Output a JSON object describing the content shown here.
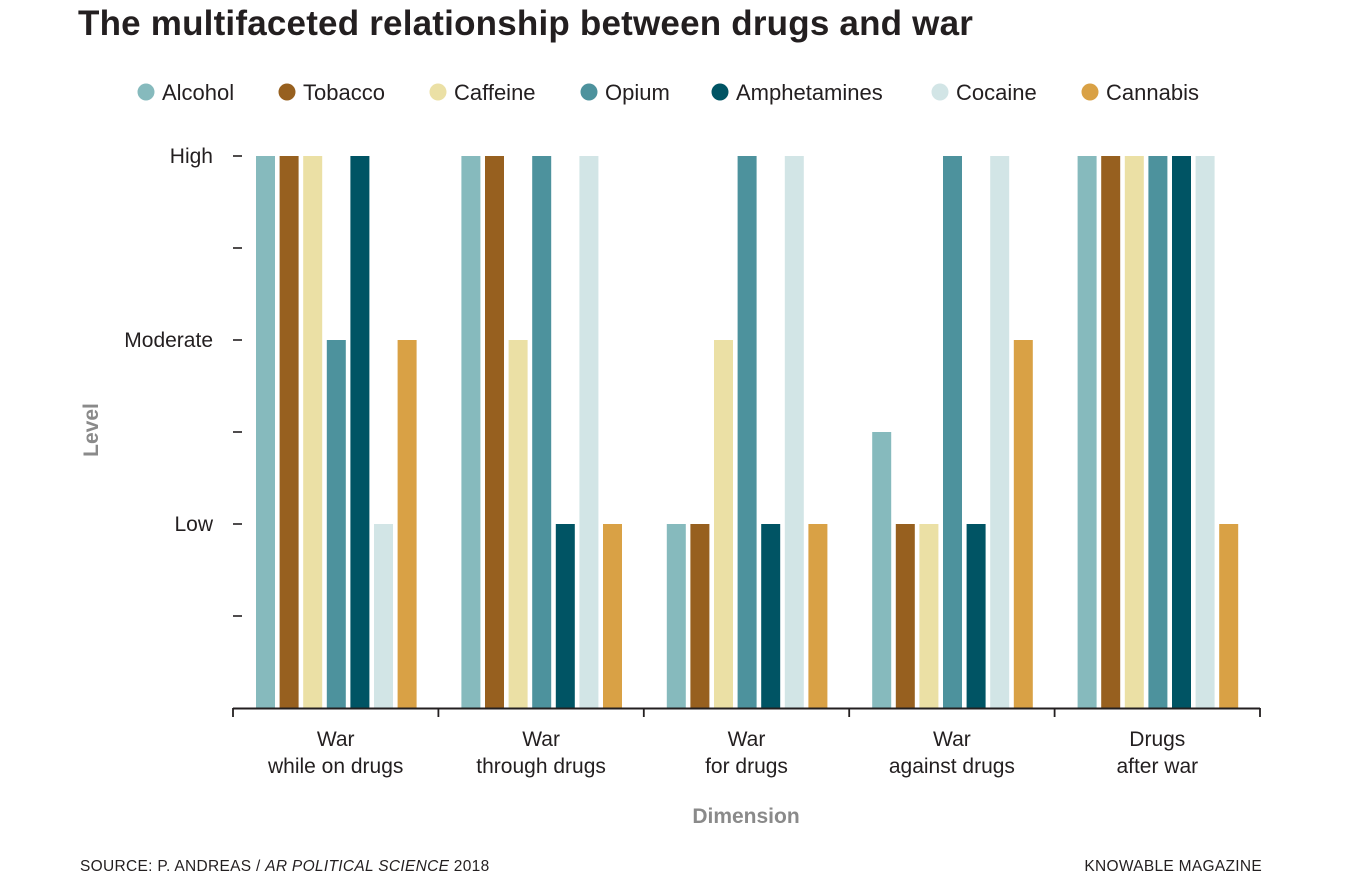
{
  "title": "The multifaceted relationship between drugs and war",
  "source": {
    "prefix": "SOURCE: P. ANDREAS / ",
    "journal": "AR POLITICAL SCIENCE",
    "year": " 2018"
  },
  "credit": "KNOWABLE MAGAZINE",
  "chart_data": {
    "type": "bar",
    "xlabel": "Dimension",
    "ylabel": "Level",
    "ylim": [
      0,
      3
    ],
    "yticks": [
      {
        "value": 3,
        "label": "High"
      },
      {
        "value": 2.5,
        "label": ""
      },
      {
        "value": 2,
        "label": "Moderate"
      },
      {
        "value": 1.5,
        "label": ""
      },
      {
        "value": 1,
        "label": "Low"
      },
      {
        "value": 0.5,
        "label": ""
      }
    ],
    "legend_position": "top",
    "categories": [
      [
        "War",
        "while on drugs"
      ],
      [
        "War",
        "through drugs"
      ],
      [
        "War",
        "for drugs"
      ],
      [
        "War",
        "against drugs"
      ],
      [
        "Drugs",
        "after war"
      ]
    ],
    "series": [
      {
        "name": "Alcohol",
        "color": "#86babd",
        "values": [
          3,
          3,
          1,
          1.5,
          3
        ]
      },
      {
        "name": "Tobacco",
        "color": "#97601f",
        "values": [
          3,
          3,
          1,
          1,
          3
        ]
      },
      {
        "name": "Caffeine",
        "color": "#ebe0a5",
        "values": [
          3,
          2,
          2,
          1,
          3
        ]
      },
      {
        "name": "Opium",
        "color": "#4d929d",
        "values": [
          2,
          3,
          3,
          3,
          3
        ]
      },
      {
        "name": "Amphetamines",
        "color": "#005464",
        "values": [
          3,
          1,
          1,
          1,
          3
        ]
      },
      {
        "name": "Cocaine",
        "color": "#d2e5e6",
        "values": [
          1,
          3,
          3,
          3,
          3
        ]
      },
      {
        "name": "Cannabis",
        "color": "#d9a145",
        "values": [
          2,
          1,
          1,
          2,
          1
        ]
      }
    ]
  }
}
